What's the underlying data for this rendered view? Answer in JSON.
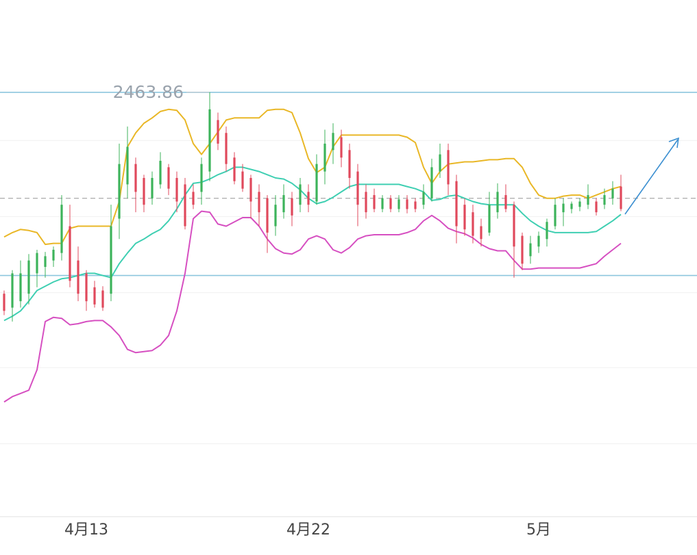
{
  "chart_data": {
    "type": "candlestick",
    "categories": [
      null,
      null,
      null,
      null,
      null,
      null,
      null,
      null,
      null,
      null,
      "4月13",
      null,
      null,
      null,
      null,
      null,
      null,
      null,
      null,
      null,
      null,
      null,
      null,
      null,
      null,
      null,
      null,
      null,
      null,
      null,
      null,
      null,
      null,
      null,
      null,
      null,
      null,
      "4月22",
      null,
      null,
      null,
      null,
      null,
      null,
      null,
      null,
      null,
      null,
      null,
      null,
      null,
      null,
      null,
      null,
      null,
      null,
      null,
      null,
      null,
      null,
      null,
      null,
      null,
      null,
      null,
      "5月",
      null,
      null,
      null,
      null,
      null,
      null,
      null,
      null,
      null,
      null
    ],
    "open": [
      2276,
      2263,
      2269,
      2276,
      2295,
      2301,
      2307,
      2314,
      2339,
      2307,
      2295,
      2282,
      2279,
      2276,
      2346,
      2378,
      2397,
      2384,
      2365,
      2378,
      2394,
      2384,
      2378,
      2371,
      2371,
      2390,
      2438,
      2426,
      2403,
      2390,
      2384,
      2371,
      2365,
      2339,
      2352,
      2365,
      2359,
      2371,
      2362,
      2390,
      2410,
      2422,
      2410,
      2390,
      2371,
      2368,
      2355,
      2365,
      2355,
      2364,
      2362,
      2359,
      2365,
      2390,
      2410,
      2381,
      2359,
      2352,
      2339,
      2333,
      2352,
      2368,
      2359,
      2330,
      2311,
      2320,
      2327,
      2339,
      2352,
      2355,
      2357,
      2359,
      2362,
      2359,
      2365,
      2376
    ],
    "high": [
      2279,
      2298,
      2307,
      2313,
      2317,
      2315,
      2320,
      2368,
      2359,
      2320,
      2298,
      2288,
      2283,
      2359,
      2416,
      2432,
      2403,
      2387,
      2390,
      2408,
      2397,
      2390,
      2384,
      2378,
      2403,
      2464,
      2445,
      2432,
      2408,
      2397,
      2387,
      2378,
      2368,
      2368,
      2378,
      2371,
      2384,
      2378,
      2406,
      2429,
      2435,
      2429,
      2416,
      2397,
      2378,
      2374,
      2368,
      2368,
      2368,
      2368,
      2365,
      2378,
      2402,
      2416,
      2416,
      2387,
      2365,
      2359,
      2346,
      2371,
      2379,
      2378,
      2362,
      2333,
      2330,
      2334,
      2346,
      2365,
      2365,
      2362,
      2365,
      2378,
      2365,
      2374,
      2381,
      2387
    ],
    "low": [
      2256,
      2250,
      2263,
      2266,
      2282,
      2291,
      2301,
      2307,
      2282,
      2269,
      2260,
      2263,
      2260,
      2269,
      2327,
      2365,
      2352,
      2352,
      2359,
      2374,
      2368,
      2352,
      2336,
      2355,
      2359,
      2381,
      2410,
      2390,
      2378,
      2371,
      2346,
      2339,
      2314,
      2330,
      2346,
      2339,
      2352,
      2352,
      2359,
      2378,
      2397,
      2394,
      2374,
      2339,
      2346,
      2352,
      2352,
      2352,
      2352,
      2351,
      2352,
      2355,
      2362,
      2384,
      2368,
      2323,
      2330,
      2323,
      2320,
      2330,
      2346,
      2352,
      2291,
      2298,
      2304,
      2314,
      2320,
      2336,
      2339,
      2351,
      2353,
      2355,
      2349,
      2355,
      2359,
      2353
    ],
    "close": [
      2260,
      2295,
      2295,
      2307,
      2314,
      2311,
      2317,
      2359,
      2288,
      2276,
      2269,
      2266,
      2263,
      2339,
      2397,
      2413,
      2371,
      2359,
      2384,
      2400,
      2374,
      2362,
      2339,
      2359,
      2397,
      2448,
      2416,
      2397,
      2381,
      2374,
      2362,
      2352,
      2333,
      2359,
      2368,
      2349,
      2378,
      2359,
      2397,
      2416,
      2426,
      2403,
      2384,
      2359,
      2352,
      2355,
      2365,
      2355,
      2364,
      2355,
      2355,
      2371,
      2394,
      2406,
      2378,
      2339,
      2336,
      2330,
      2327,
      2359,
      2371,
      2355,
      2320,
      2304,
      2323,
      2330,
      2343,
      2359,
      2360,
      2360,
      2362,
      2368,
      2352,
      2368,
      2374,
      2355
    ],
    "up_color": "#3db35b",
    "down_color": "#e0495c",
    "series": [
      {
        "color": "#e9b726",
        "values": [
          2329,
          2333,
          2336,
          2335,
          2333,
          2322,
          2323,
          2323,
          2337,
          2339,
          2339,
          2339,
          2339,
          2339,
          2362,
          2413,
          2426,
          2435,
          2440,
          2446,
          2448,
          2447,
          2438,
          2416,
          2406,
          2416,
          2427,
          2438,
          2440,
          2440,
          2440,
          2440,
          2447,
          2448,
          2448,
          2445,
          2426,
          2402,
          2389,
          2394,
          2413,
          2424,
          2424,
          2424,
          2424,
          2424,
          2424,
          2424,
          2424,
          2422,
          2417,
          2394,
          2379,
          2390,
          2397,
          2398,
          2399,
          2399,
          2400,
          2401,
          2401,
          2402,
          2402,
          2394,
          2379,
          2368,
          2365,
          2365,
          2367,
          2368,
          2368,
          2365,
          2368,
          2371,
          2374,
          2376
        ]
      },
      {
        "color": "#3fcfb2",
        "values": [
          2251,
          2255,
          2260,
          2269,
          2279,
          2283,
          2287,
          2290,
          2291,
          2293,
          2295,
          2295,
          2293,
          2291,
          2304,
          2314,
          2323,
          2327,
          2332,
          2336,
          2344,
          2355,
          2368,
          2379,
          2380,
          2383,
          2387,
          2390,
          2394,
          2394,
          2392,
          2390,
          2387,
          2384,
          2383,
          2379,
          2373,
          2365,
          2360,
          2362,
          2366,
          2371,
          2376,
          2378,
          2378,
          2378,
          2378,
          2378,
          2378,
          2376,
          2374,
          2371,
          2363,
          2364,
          2367,
          2368,
          2365,
          2362,
          2360,
          2359,
          2359,
          2359,
          2359,
          2351,
          2344,
          2339,
          2335,
          2333,
          2333,
          2333,
          2333,
          2333,
          2334,
          2339,
          2344,
          2350
        ]
      },
      {
        "color": "#d64fc1",
        "values": [
          2175,
          2180,
          2183,
          2186,
          2205,
          2250,
          2254,
          2253,
          2247,
          2248,
          2250,
          2251,
          2251,
          2245,
          2237,
          2224,
          2221,
          2222,
          2223,
          2228,
          2237,
          2260,
          2295,
          2346,
          2353,
          2352,
          2341,
          2339,
          2343,
          2347,
          2347,
          2339,
          2327,
          2318,
          2314,
          2313,
          2317,
          2327,
          2330,
          2327,
          2317,
          2314,
          2319,
          2327,
          2330,
          2331,
          2331,
          2331,
          2331,
          2333,
          2336,
          2344,
          2349,
          2344,
          2337,
          2334,
          2332,
          2328,
          2322,
          2318,
          2316,
          2316,
          2307,
          2299,
          2299,
          2300,
          2300,
          2300,
          2300,
          2300,
          2300,
          2302,
          2304,
          2311,
          2317,
          2323
        ]
      }
    ],
    "hlines": [
      {
        "value": 2463.86,
        "color": "#8cc6de",
        "style": "solid"
      },
      {
        "value": 2293,
        "color": "#8cc6de",
        "style": "solid"
      },
      {
        "value": 2365,
        "color": "#a9a9a9",
        "style": "dashed"
      }
    ],
    "grid_levels": [
      2419,
      2348,
      2277,
      2207,
      2136
    ],
    "ylim": [
      2068,
      2550
    ]
  }
}
